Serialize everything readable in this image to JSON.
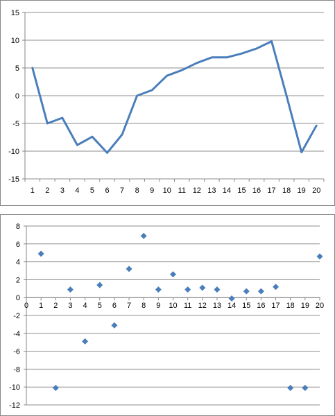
{
  "chart_data": [
    {
      "type": "line",
      "x": [
        1,
        2,
        3,
        4,
        5,
        6,
        7,
        8,
        9,
        10,
        11,
        12,
        13,
        14,
        15,
        16,
        17,
        18,
        19,
        20
      ],
      "categories": [
        "1",
        "2",
        "3",
        "4",
        "5",
        "6",
        "7",
        "8",
        "9",
        "10",
        "11",
        "12",
        "13",
        "14",
        "15",
        "16",
        "17",
        "18",
        "19",
        "20"
      ],
      "series": [
        {
          "values": [
            5,
            -5,
            -4,
            -8.9,
            -7.4,
            -10.3,
            -7,
            0,
            1,
            3.6,
            4.6,
            5.9,
            6.9,
            6.9,
            7.6,
            8.5,
            9.8,
            0,
            -10.2,
            -5.4
          ]
        }
      ],
      "ylim": [
        -15,
        15
      ],
      "yticks": [
        "15",
        "10",
        "5",
        "0",
        "-5",
        "-10",
        "-15"
      ],
      "ytick_values": [
        15,
        10,
        5,
        0,
        -5,
        -10,
        -15
      ],
      "grid": true,
      "color": "#4a7ebb",
      "title": "",
      "xlabel": "",
      "ylabel": ""
    },
    {
      "type": "scatter",
      "x": [
        1,
        2,
        3,
        4,
        5,
        6,
        7,
        8,
        9,
        10,
        11,
        12,
        13,
        14,
        15,
        16,
        17,
        18,
        19,
        20
      ],
      "series": [
        {
          "values": [
            4.9,
            -10.1,
            0.9,
            -4.9,
            1.4,
            -3.1,
            3.2,
            6.9,
            0.9,
            2.6,
            0.9,
            1.1,
            0.9,
            -0.1,
            0.7,
            0.7,
            1.2,
            -10.1,
            -10.1,
            4.6
          ]
        }
      ],
      "xlim": [
        0,
        20
      ],
      "xticks": [
        "0",
        "1",
        "2",
        "3",
        "4",
        "5",
        "6",
        "7",
        "8",
        "9",
        "10",
        "11",
        "12",
        "13",
        "14",
        "15",
        "16",
        "17",
        "18",
        "19",
        "20"
      ],
      "ylim": [
        -12,
        8
      ],
      "yticks": [
        "8",
        "6",
        "4",
        "2",
        "0",
        "-2",
        "-4",
        "-6",
        "-8",
        "-10",
        "-12"
      ],
      "ytick_values": [
        8,
        6,
        4,
        2,
        0,
        -2,
        -4,
        -6,
        -8,
        -10,
        -12
      ],
      "grid": true,
      "color": "#4a7ebb",
      "title": "",
      "xlabel": "",
      "ylabel": ""
    }
  ]
}
